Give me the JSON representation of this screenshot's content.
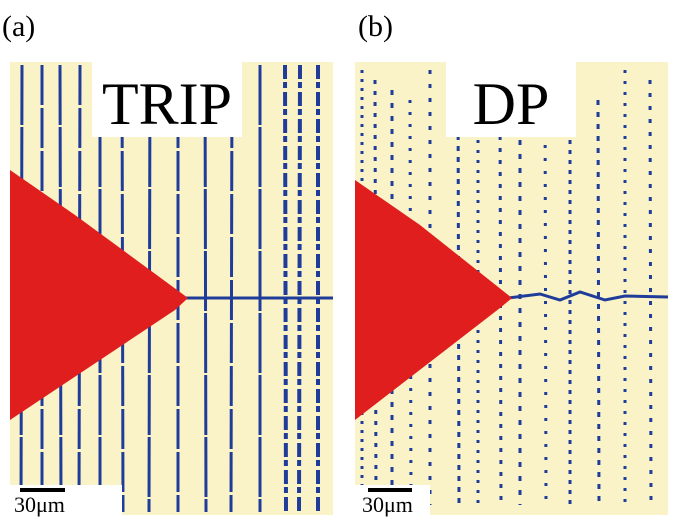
{
  "panels": [
    {
      "label": "(a)",
      "title": "TRIP",
      "scale_bar": "30μm"
    },
    {
      "label": "(b)",
      "title": "DP",
      "scale_bar": "30μm"
    }
  ]
}
